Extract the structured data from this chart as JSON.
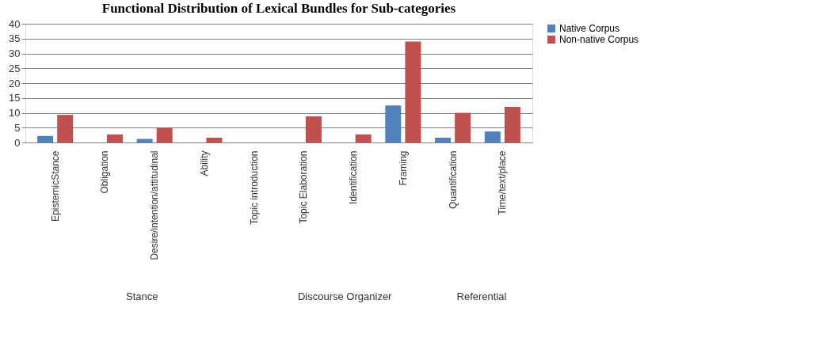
{
  "chart_data": {
    "type": "bar",
    "title": "Functional Distribution of Lexical Bundles for Sub-categories",
    "categories": [
      "EpistemicStance",
      "Obligation",
      "Desire/intention/attitudinal",
      "Ability",
      "Topic introduction",
      "Topic Elaboration",
      "Identification",
      "Framing",
      "Quantification",
      "Time/text/place"
    ],
    "series": [
      {
        "name": "Native Corpus",
        "color": "#4f81bd",
        "values": [
          2.2,
          0,
          1.2,
          0,
          0,
          0,
          0,
          12.5,
          1.6,
          3.7
        ]
      },
      {
        "name": "Non-native Corpus",
        "color": "#c0504d",
        "values": [
          9.3,
          2.7,
          5,
          1.6,
          0,
          8.8,
          2.7,
          34,
          10,
          12
        ]
      }
    ],
    "ylim": [
      0,
      40
    ],
    "yticks": [
      0,
      5,
      10,
      15,
      20,
      25,
      30,
      35,
      40
    ],
    "grid": "y",
    "legend": "right",
    "annotations": [
      "Stance",
      "Discourse Organizer",
      "Referential"
    ]
  }
}
